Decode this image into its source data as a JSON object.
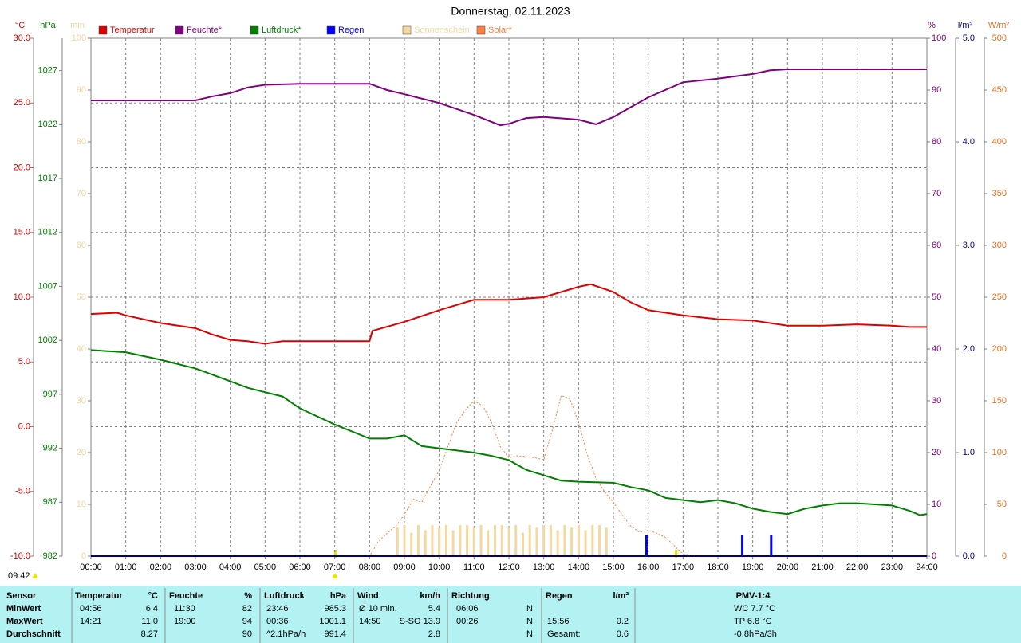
{
  "chart_data": {
    "type": "line",
    "title": "Donnerstag, 02.11.2023",
    "update_time": "09:42",
    "xlim": [
      0,
      24
    ],
    "xticks": [
      {
        "value": 0,
        "label": "00:00"
      },
      {
        "value": 1,
        "label": "01:00"
      },
      {
        "value": 2,
        "label": "02:00"
      },
      {
        "value": 3,
        "label": "03:00"
      },
      {
        "value": 4,
        "label": "04:00"
      },
      {
        "value": 5,
        "label": "05:00"
      },
      {
        "value": 6,
        "label": "06:00"
      },
      {
        "value": 7,
        "label": "07:00"
      },
      {
        "value": 8,
        "label": "08:00"
      },
      {
        "value": 9,
        "label": "09:00"
      },
      {
        "value": 10,
        "label": "10:00"
      },
      {
        "value": 11,
        "label": "11:00"
      },
      {
        "value": 12,
        "label": "12:00"
      },
      {
        "value": 13,
        "label": "13:00"
      },
      {
        "value": 14,
        "label": "14:00"
      },
      {
        "value": 15,
        "label": "15:00"
      },
      {
        "value": 16,
        "label": "16:00"
      },
      {
        "value": 17,
        "label": "17:00"
      },
      {
        "value": 18,
        "label": "18:00"
      },
      {
        "value": 19,
        "label": "19:00"
      },
      {
        "value": 20,
        "label": "20:00"
      },
      {
        "value": 21,
        "label": "21:00"
      },
      {
        "value": 22,
        "label": "22:00"
      },
      {
        "value": 23,
        "label": "23:00"
      },
      {
        "value": 24,
        "label": "24:00"
      }
    ],
    "grid": true,
    "axes": {
      "temp": {
        "label": "°C",
        "color": "#e00000",
        "side": "left",
        "ylim": [
          -10,
          30
        ],
        "yticks": [
          {
            "value": 30,
            "label": "30.0"
          },
          {
            "value": 25,
            "label": "25.0"
          },
          {
            "value": 20,
            "label": "20.0"
          },
          {
            "value": 15,
            "label": "15.0"
          },
          {
            "value": 10,
            "label": "10.0"
          },
          {
            "value": 5,
            "label": "5.0"
          },
          {
            "value": 0,
            "label": "0.0"
          },
          {
            "value": -5,
            "label": "-5.0"
          },
          {
            "value": -10,
            "label": "-10.0"
          }
        ]
      },
      "press": {
        "label": "hPa",
        "color": "#008000",
        "side": "left",
        "ylim": [
          982,
          1030
        ],
        "yticks": [
          1027,
          1022,
          1017,
          1012,
          1007,
          1002,
          997,
          992,
          987,
          982
        ]
      },
      "sun": {
        "label": "min",
        "color": "#f0d4a0",
        "side": "left",
        "ylim": [
          0,
          100
        ],
        "yticks": [
          100,
          90,
          80,
          70,
          60,
          50,
          40,
          30,
          20,
          10,
          0
        ]
      },
      "hum": {
        "label": "%",
        "color": "#800080",
        "side": "right",
        "ylim": [
          0,
          100
        ],
        "yticks": [
          100,
          90,
          80,
          70,
          60,
          50,
          40,
          30,
          20,
          10,
          0
        ]
      },
      "rain": {
        "label": "l/m²",
        "color": "#000080",
        "side": "right",
        "ylim": [
          0,
          5
        ],
        "yticks": [
          {
            "value": 5,
            "label": "5.0"
          },
          {
            "value": 4,
            "label": "4.0"
          },
          {
            "value": 3,
            "label": "3.0"
          },
          {
            "value": 2,
            "label": "2.0"
          },
          {
            "value": 1,
            "label": "1.0"
          },
          {
            "value": 0,
            "label": "0.0"
          }
        ]
      },
      "solar": {
        "label": "W/m²",
        "color": "#e07020",
        "side": "right",
        "ylim": [
          0,
          500
        ],
        "yticks": [
          500,
          450,
          400,
          350,
          300,
          250,
          200,
          150,
          100,
          50,
          0
        ]
      }
    },
    "series": [
      {
        "name": "Temperatur",
        "color": "#e00000",
        "axis": "temp",
        "kind": "line",
        "x": [
          0,
          0.75,
          1,
          2,
          3,
          3.5,
          4,
          4.5,
          5,
          5.5,
          6,
          7,
          8,
          8.08,
          9,
          10,
          11,
          11.5,
          12,
          13,
          14,
          14.35,
          15,
          15.5,
          16,
          17,
          18,
          19,
          20,
          21,
          22,
          23,
          23.5,
          24
        ],
        "values": [
          8.7,
          8.8,
          8.6,
          8.0,
          7.6,
          7.1,
          6.7,
          6.6,
          6.4,
          6.6,
          6.6,
          6.6,
          6.6,
          7.4,
          8.1,
          9.0,
          9.8,
          9.8,
          9.8,
          10.0,
          10.8,
          11.0,
          10.4,
          9.6,
          9.0,
          8.6,
          8.3,
          8.2,
          7.8,
          7.8,
          7.9,
          7.8,
          7.7,
          7.7
        ]
      },
      {
        "name": "Feuchte*",
        "color": "#800080",
        "axis": "hum",
        "kind": "line",
        "x": [
          0,
          3,
          3.5,
          4,
          4.5,
          5,
          6,
          8,
          8.5,
          9,
          10,
          11,
          11.75,
          12,
          12.5,
          13,
          14,
          14.5,
          15,
          16,
          17,
          18,
          19,
          19.5,
          20,
          24
        ],
        "values": [
          88,
          88,
          88.8,
          89.4,
          90.5,
          91,
          91.2,
          91.2,
          90,
          89.2,
          87.5,
          85.2,
          83.2,
          83.5,
          84.6,
          84.8,
          84.3,
          83.4,
          84.8,
          88.6,
          91.5,
          92.2,
          93.1,
          93.8,
          94,
          94
        ]
      },
      {
        "name": "Luftdruck*",
        "color": "#008000",
        "axis": "press",
        "kind": "line",
        "x": [
          0,
          1,
          2,
          3,
          4,
          4.5,
          5,
          5.5,
          6,
          7,
          8,
          8.5,
          9,
          9.5,
          10,
          11,
          11.5,
          12,
          12.5,
          13,
          13.5,
          14,
          15,
          15.5,
          16,
          16.5,
          17,
          17.5,
          18,
          18.5,
          19,
          19.5,
          20,
          20.5,
          21,
          21.5,
          22,
          22.5,
          23,
          23.5,
          23.8,
          24
        ],
        "values": [
          1001.1,
          1000.9,
          1000.2,
          999.4,
          998.2,
          997.6,
          997.2,
          996.8,
          995.7,
          994.2,
          992.9,
          992.9,
          993.2,
          992.2,
          992.0,
          991.6,
          991.3,
          990.9,
          990.0,
          989.5,
          989.0,
          988.9,
          988.8,
          988.4,
          988.1,
          987.4,
          987.2,
          987.0,
          987.2,
          986.9,
          986.4,
          986.1,
          985.9,
          986.4,
          986.7,
          986.9,
          986.9,
          986.8,
          986.7,
          986.2,
          985.8,
          985.9
        ]
      },
      {
        "name": "Regen",
        "color": "#0000ff",
        "axis": "rain",
        "kind": "bar",
        "x": [
          15.95,
          18.7,
          19.53
        ],
        "values": [
          0.2,
          0.2,
          0.2
        ]
      },
      {
        "name": "Sonnenschein",
        "color": "#f5d8a0",
        "axis": "sun",
        "kind": "bar",
        "x": [
          8.8,
          9.0,
          9.2,
          9.4,
          9.6,
          9.8,
          10.0,
          10.2,
          10.4,
          10.6,
          10.8,
          11.0,
          11.2,
          11.4,
          11.6,
          11.8,
          12.0,
          12.2,
          12.4,
          12.6,
          12.8,
          13.0,
          13.2,
          13.4,
          13.6,
          13.8,
          14.0,
          14.2,
          14.4,
          14.6,
          14.8
        ],
        "values": [
          5.5,
          6,
          4.5,
          6,
          5,
          6,
          5.5,
          6,
          5,
          6,
          6,
          5.5,
          6,
          5,
          6,
          6,
          5.5,
          6,
          4.5,
          6,
          5.5,
          6,
          6,
          5,
          6,
          5.5,
          6,
          5,
          6,
          6,
          5.5
        ]
      },
      {
        "name": "Solar*",
        "color": "#ff8040",
        "axis": "solar",
        "kind": "dotted",
        "x": [
          0,
          8,
          8.25,
          8.5,
          8.75,
          9,
          9.25,
          9.5,
          9.75,
          10,
          10.25,
          10.5,
          10.75,
          11,
          11.25,
          11.5,
          11.75,
          12,
          12.25,
          12.5,
          12.75,
          13,
          13.25,
          13.5,
          13.75,
          14,
          14.25,
          14.5,
          14.75,
          15,
          15.25,
          15.5,
          15.75,
          16,
          16.25,
          16.5,
          16.75,
          17,
          17.5,
          24
        ],
        "values": [
          0,
          0,
          14,
          22,
          29,
          40,
          55,
          52,
          68,
          83,
          106,
          129,
          141,
          150,
          145,
          129,
          106,
          95,
          97,
          96,
          95,
          93,
          122,
          155,
          152,
          129,
          98,
          75,
          62,
          52,
          40,
          29,
          23,
          25,
          22,
          18,
          10,
          2,
          0,
          0
        ]
      }
    ]
  },
  "stats_table": {
    "header": {
      "sensor": "Sensor",
      "temp": "Temperatur",
      "temp_unit": "°C",
      "hum": "Feuchte",
      "hum_unit": "%",
      "press": "Luftdruck",
      "press_unit": "hPa",
      "wind": "Wind",
      "wind_unit": "km/h",
      "dir": "Richtung",
      "rain": "Regen",
      "rain_unit": "l/m²",
      "pmv": "PMV-1:4"
    },
    "rows": [
      {
        "sensor": "MinWert",
        "temp_time": "04:56",
        "temp": "6.4",
        "hum_time": "11:30",
        "hum": "82",
        "press_time": "23:46",
        "press": "985.3",
        "wind_time": "Ø 10 min.",
        "wind": "5.4",
        "dir_time": "06:06",
        "dir": "N",
        "pmv": "WC 7.7 °C"
      },
      {
        "sensor": "MaxWert",
        "temp_time": "14:21",
        "temp": "11.0",
        "hum_time": "19:00",
        "hum": "94",
        "press_time": "00:36",
        "press": "1001.1",
        "wind_time": "14:50",
        "wind": "S-SO 13.9",
        "dir_time": "00:26",
        "dir": "N",
        "rain_time": "15:56",
        "rain": "0.2",
        "pmv": "TP 6.8 °C"
      },
      {
        "sensor": "Durchschnitt",
        "temp": "8.27",
        "hum": "90",
        "press_time": "^2.1hPa/h",
        "press": "991.4",
        "wind": "2.8",
        "dir": "N",
        "rain_time": "Gesamt:",
        "rain": "0.6",
        "pmv": "-0.8hPa/3h"
      }
    ]
  }
}
